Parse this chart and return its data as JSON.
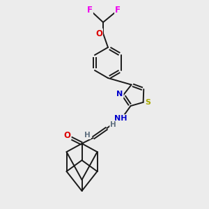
{
  "background_color": "#ececec",
  "bond_color": "#1a1a1a",
  "atom_colors": {
    "F": "#ee00ee",
    "O": "#dd0000",
    "N": "#0000cc",
    "S": "#aaaa00",
    "H": "#607080",
    "C": "#1a1a1a"
  },
  "figsize": [
    3.0,
    3.0
  ],
  "dpi": 100,
  "xlim": [
    0,
    300
  ],
  "ylim": [
    0,
    300
  ]
}
